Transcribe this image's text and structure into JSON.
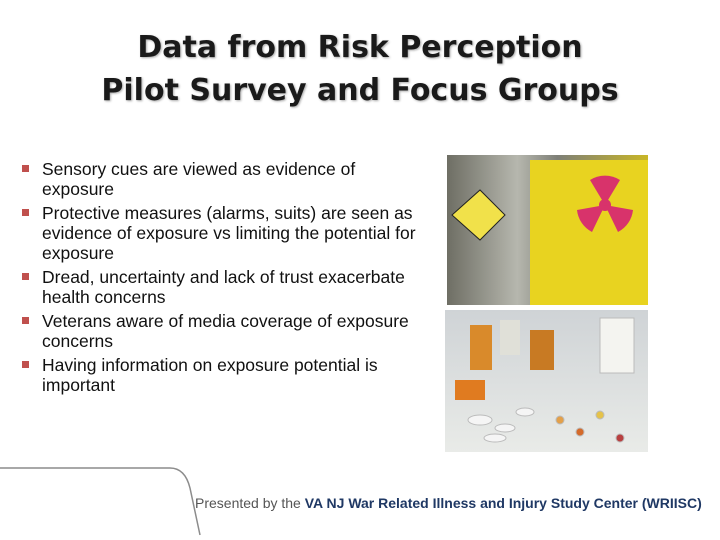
{
  "title": {
    "lines": [
      "Data from Risk Perception",
      "Pilot Survey and Focus Groups"
    ]
  },
  "bullets": [
    "Sensory cues are viewed as evidence of exposure",
    "Protective measures (alarms, suits) are seen as evidence of exposure vs limiting the potential for  exposure",
    "Dread, uncertainty and lack of trust exacerbate health concerns",
    "Veterans aware of media coverage of exposure concerns",
    "Having information on exposure potential is important"
  ],
  "footer": {
    "prefix": "Presented by the",
    "organization": "VA NJ War Related Illness and Injury Study Center (WRIISC)"
  }
}
